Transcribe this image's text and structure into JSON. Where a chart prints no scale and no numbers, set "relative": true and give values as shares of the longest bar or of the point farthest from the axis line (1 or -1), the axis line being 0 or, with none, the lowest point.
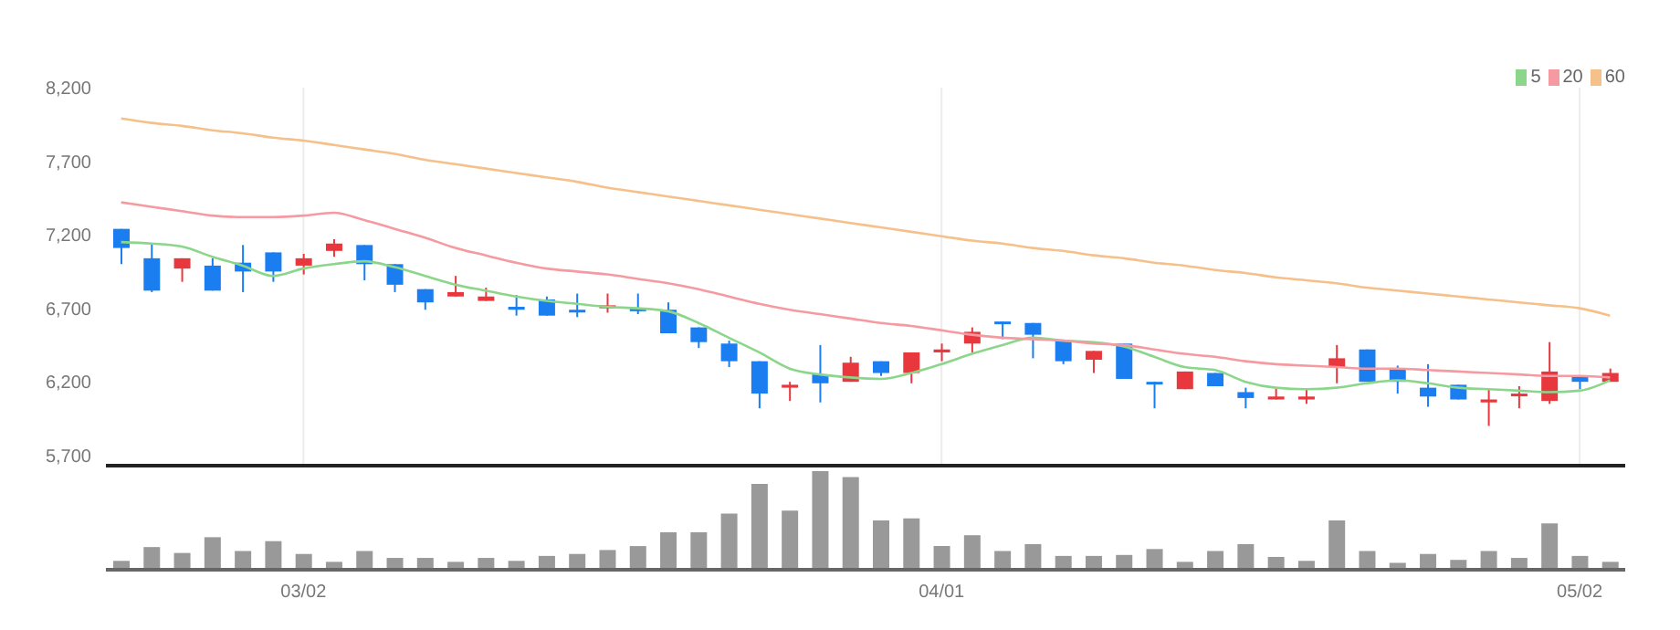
{
  "chart_data": [
    {
      "type": "candlestick",
      "categories": [
        null,
        null,
        null,
        null,
        null,
        null,
        null,
        null,
        null,
        null,
        null,
        null,
        null,
        null,
        null,
        null,
        null,
        null,
        null,
        null,
        null,
        null,
        null,
        null,
        null,
        null,
        null,
        null,
        null,
        null,
        null,
        null,
        null,
        null,
        null,
        null,
        null,
        null,
        null,
        null,
        null,
        null,
        null,
        null,
        null,
        null,
        null,
        null,
        null,
        null
      ],
      "ohlc": [
        [
          7240,
          7240,
          7000,
          7110
        ],
        [
          7040,
          7140,
          6810,
          6820
        ],
        [
          6970,
          7040,
          6880,
          7040
        ],
        [
          6990,
          7040,
          6820,
          6820
        ],
        [
          7010,
          7130,
          6810,
          6950
        ],
        [
          7080,
          7080,
          6880,
          6950
        ],
        [
          6990,
          7070,
          6930,
          7040
        ],
        [
          7090,
          7170,
          7050,
          7140
        ],
        [
          7130,
          7130,
          6890,
          7000
        ],
        [
          7000,
          7000,
          6810,
          6860
        ],
        [
          6830,
          6830,
          6690,
          6740
        ],
        [
          6780,
          6920,
          6780,
          6810
        ],
        [
          6750,
          6840,
          6750,
          6780
        ],
        [
          6710,
          6790,
          6650,
          6690
        ],
        [
          6760,
          6780,
          6650,
          6650
        ],
        [
          6690,
          6800,
          6640,
          6680
        ],
        [
          6700,
          6800,
          6670,
          6720
        ],
        [
          6700,
          6800,
          6660,
          6680
        ],
        [
          6690,
          6740,
          6530,
          6530
        ],
        [
          6570,
          6570,
          6430,
          6470
        ],
        [
          6460,
          6480,
          6300,
          6340
        ],
        [
          6340,
          6340,
          6020,
          6120
        ],
        [
          6160,
          6200,
          6070,
          6180
        ],
        [
          6250,
          6450,
          6060,
          6190
        ],
        [
          6200,
          6370,
          6200,
          6330
        ],
        [
          6340,
          6340,
          6240,
          6260
        ],
        [
          6260,
          6400,
          6190,
          6400
        ],
        [
          6400,
          6460,
          6340,
          6420
        ],
        [
          6460,
          6570,
          6400,
          6540
        ],
        [
          6610,
          6610,
          6490,
          6600
        ],
        [
          6600,
          6600,
          6360,
          6520
        ],
        [
          6480,
          6480,
          6320,
          6340
        ],
        [
          6350,
          6410,
          6260,
          6410
        ],
        [
          6460,
          6460,
          6220,
          6220
        ],
        [
          6200,
          6200,
          6020,
          6190
        ],
        [
          6150,
          6270,
          6150,
          6270
        ],
        [
          6260,
          6260,
          6170,
          6170
        ],
        [
          6130,
          6160,
          6020,
          6090
        ],
        [
          6080,
          6160,
          6080,
          6100
        ],
        [
          6080,
          6150,
          6050,
          6100
        ],
        [
          6300,
          6450,
          6190,
          6360
        ],
        [
          6420,
          6420,
          6200,
          6200
        ],
        [
          6290,
          6310,
          6120,
          6200
        ],
        [
          6160,
          6320,
          6030,
          6100
        ],
        [
          6180,
          6180,
          6080,
          6080
        ],
        [
          6060,
          6150,
          5900,
          6080
        ],
        [
          6110,
          6170,
          6020,
          6120
        ],
        [
          6070,
          6470,
          6050,
          6270
        ],
        [
          6240,
          6240,
          6150,
          6200
        ],
        [
          6200,
          6290,
          6200,
          6260
        ]
      ],
      "colors": [
        "#1a7ef0",
        "#1a7ef0",
        "#e8383d",
        "#1a7ef0",
        "#1a7ef0",
        "#1a7ef0",
        "#e8383d",
        "#e8383d",
        "#1a7ef0",
        "#1a7ef0",
        "#1a7ef0",
        "#e8383d",
        "#e8383d",
        "#1a7ef0",
        "#1a7ef0",
        "#1a7ef0",
        "#e8383d",
        "#1a7ef0",
        "#1a7ef0",
        "#1a7ef0",
        "#1a7ef0",
        "#1a7ef0",
        "#e8383d",
        "#1a7ef0",
        "#e8383d",
        "#1a7ef0",
        "#e8383d",
        "#e8383d",
        "#e8383d",
        "#1a7ef0",
        "#1a7ef0",
        "#1a7ef0",
        "#e8383d",
        "#1a7ef0",
        "#1a7ef0",
        "#e8383d",
        "#1a7ef0",
        "#1a7ef0",
        "#e8383d",
        "#e8383d",
        "#e8383d",
        "#1a7ef0",
        "#1a7ef0",
        "#1a7ef0",
        "#1a7ef0",
        "#e8383d",
        "#e8383d",
        "#e8383d",
        "#1a7ef0",
        "#e8383d"
      ],
      "series": [
        {
          "type": "line",
          "name": "5",
          "color": "#8cd68c",
          "values": [
            7150,
            7140,
            7120,
            7050,
            6990,
            6920,
            6970,
            7000,
            7020,
            6980,
            6920,
            6860,
            6820,
            6780,
            6750,
            6730,
            6710,
            6700,
            6680,
            6600,
            6500,
            6400,
            6290,
            6250,
            6230,
            6220,
            6260,
            6320,
            6390,
            6450,
            6500,
            6480,
            6470,
            6440,
            6370,
            6300,
            6280,
            6200,
            6160,
            6150,
            6160,
            6190,
            6210,
            6190,
            6160,
            6150,
            6140,
            6130,
            6140,
            6210
          ]
        },
        {
          "type": "line",
          "name": "20",
          "color": "#f59aa0",
          "values": [
            7420,
            7390,
            7360,
            7330,
            7320,
            7320,
            7330,
            7350,
            7300,
            7240,
            7180,
            7110,
            7060,
            7010,
            6970,
            6950,
            6930,
            6900,
            6870,
            6830,
            6780,
            6730,
            6690,
            6660,
            6630,
            6600,
            6580,
            6550,
            6520,
            6500,
            6490,
            6480,
            6460,
            6450,
            6420,
            6390,
            6370,
            6340,
            6320,
            6310,
            6300,
            6290,
            6290,
            6280,
            6270,
            6260,
            6250,
            6240,
            6240,
            6230
          ]
        },
        {
          "type": "line",
          "name": "60",
          "color": "#f5c08a",
          "values": [
            7990,
            7960,
            7940,
            7910,
            7890,
            7860,
            7840,
            7810,
            7780,
            7750,
            7710,
            7680,
            7650,
            7620,
            7590,
            7560,
            7520,
            7490,
            7460,
            7430,
            7400,
            7370,
            7340,
            7310,
            7280,
            7250,
            7220,
            7190,
            7160,
            7140,
            7110,
            7090,
            7060,
            7040,
            7010,
            6990,
            6960,
            6940,
            6910,
            6890,
            6870,
            6840,
            6820,
            6800,
            6780,
            6760,
            6740,
            6720,
            6700,
            6650
          ]
        }
      ],
      "ylim": [
        5630,
        8200
      ],
      "yticks": [
        {
          "value": 5700,
          "label": "5,700"
        },
        {
          "value": 6200,
          "label": "6,200"
        },
        {
          "value": 6700,
          "label": "6,700"
        },
        {
          "value": 7200,
          "label": "7,200"
        },
        {
          "value": 7700,
          "label": "7,700"
        },
        {
          "value": 8200,
          "label": "8,200"
        }
      ],
      "grid": true,
      "legend": "top right",
      "tick_labels": "y"
    },
    {
      "type": "bar",
      "relative": true,
      "tick_labels": "x",
      "color": "#999999",
      "categories": [
        null,
        null,
        null,
        null,
        null,
        null,
        "03/02",
        null,
        null,
        null,
        null,
        null,
        null,
        null,
        null,
        null,
        null,
        null,
        null,
        null,
        null,
        null,
        null,
        null,
        null,
        null,
        null,
        "04/01",
        null,
        null,
        null,
        null,
        null,
        null,
        null,
        null,
        null,
        null,
        null,
        null,
        null,
        null,
        null,
        null,
        null,
        null,
        null,
        null,
        "05/02",
        null
      ],
      "values": [
        0.09,
        0.23,
        0.17,
        0.33,
        0.19,
        0.29,
        0.16,
        0.08,
        0.19,
        0.12,
        0.12,
        0.08,
        0.12,
        0.09,
        0.14,
        0.16,
        0.2,
        0.24,
        0.38,
        0.38,
        0.57,
        0.87,
        0.6,
        1,
        0.94,
        0.5,
        0.52,
        0.24,
        0.35,
        0.19,
        0.26,
        0.14,
        0.14,
        0.15,
        0.21,
        0.08,
        0.19,
        0.26,
        0.13,
        0.09,
        0.5,
        0.19,
        0.07,
        0.16,
        0.1,
        0.19,
        0.12,
        0.47,
        0.14,
        0.08
      ]
    }
  ]
}
